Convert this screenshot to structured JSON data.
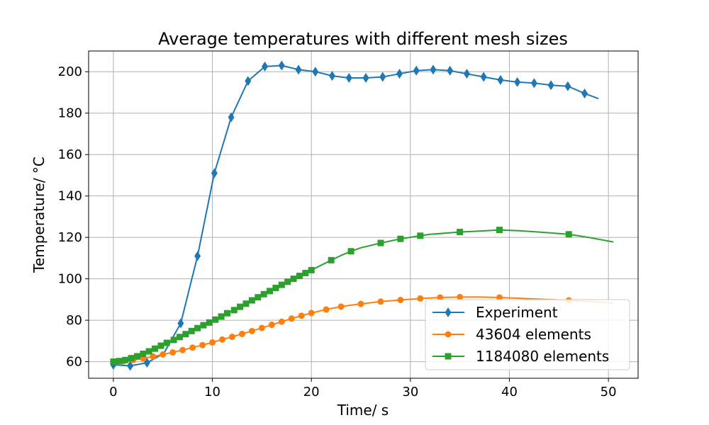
{
  "chart_data": {
    "type": "line",
    "title": "Average temperatures with different mesh sizes",
    "xlabel": "Time/ s",
    "ylabel": "Temperature/ °C",
    "xlim": [
      -2.5,
      53
    ],
    "ylim": [
      52,
      210
    ],
    "xticks": [
      0,
      10,
      20,
      30,
      40,
      50
    ],
    "yticks": [
      60,
      80,
      100,
      120,
      140,
      160,
      180,
      200
    ],
    "grid": true,
    "legend_position": "lower-right",
    "series": [
      {
        "name": "Experiment",
        "color": "#1f77b4",
        "marker": "diamond",
        "x": [
          0,
          1.7,
          3.4,
          5.1,
          6.8,
          8.5,
          10.2,
          11.9,
          13.6,
          15.3,
          17.0,
          18.7,
          20.4,
          22.1,
          23.8,
          25.5,
          27.2,
          28.9,
          30.6,
          32.3,
          34.0,
          35.7,
          37.4,
          39.1,
          40.8,
          42.5,
          44.2,
          45.9,
          47.6,
          49.0
        ],
        "y": [
          58.5,
          58.0,
          59.5,
          64.0,
          78.5,
          111.0,
          151.0,
          178.0,
          195.5,
          202.5,
          203.0,
          201.0,
          200.0,
          198.0,
          197.0,
          197.0,
          197.5,
          199.0,
          200.5,
          201.0,
          200.5,
          199.0,
          197.5,
          196.0,
          195.0,
          194.5,
          193.5,
          193.0,
          189.5,
          187.0
        ],
        "marker_indices": [
          0,
          1,
          2,
          4,
          5,
          6,
          7,
          8,
          9,
          10,
          11,
          12,
          13,
          14,
          15,
          16,
          17,
          18,
          19,
          20,
          21,
          22,
          23,
          24,
          25,
          26,
          27,
          28
        ]
      },
      {
        "name": "43604 elements",
        "color": "#ff7f0e",
        "marker": "circle",
        "x": [
          0,
          1,
          2,
          3,
          4,
          5,
          6,
          7,
          8,
          9,
          10,
          11,
          12,
          13,
          14,
          15,
          16,
          17,
          18,
          19,
          20,
          21.5,
          23,
          25,
          27,
          29,
          31,
          33,
          35,
          37,
          39,
          41,
          43,
          46,
          48,
          50.5
        ],
        "y": [
          60,
          60.2,
          60.8,
          61.6,
          62.5,
          63.5,
          64.5,
          65.6,
          66.8,
          68.0,
          69.3,
          70.7,
          72.0,
          73.4,
          74.8,
          76.3,
          77.8,
          79.3,
          80.8,
          82.2,
          83.5,
          85.2,
          86.6,
          87.9,
          89.0,
          89.8,
          90.5,
          91.0,
          91.2,
          91.2,
          91.0,
          90.6,
          90.2,
          89.6,
          89.0,
          88.3
        ],
        "marker_indices": [
          0,
          1,
          2,
          3,
          4,
          5,
          6,
          7,
          8,
          9,
          10,
          11,
          12,
          13,
          14,
          15,
          16,
          17,
          18,
          19,
          20,
          21,
          22,
          23,
          24,
          25,
          26,
          27,
          28,
          30,
          33
        ]
      },
      {
        "name": "1184080 elements",
        "color": "#2ca02c",
        "marker": "square",
        "x": [
          0,
          0.6,
          1.2,
          1.8,
          2.4,
          3.0,
          3.6,
          4.2,
          4.8,
          5.4,
          6.1,
          6.7,
          7.3,
          7.9,
          8.5,
          9.1,
          9.7,
          10.3,
          10.9,
          11.5,
          12.2,
          12.8,
          13.4,
          14.0,
          14.6,
          15.2,
          15.8,
          16.4,
          17.0,
          17.6,
          18.2,
          18.8,
          19.4,
          20.0,
          21.0,
          22.0,
          23.0,
          24.0,
          25.0,
          27.0,
          29.0,
          31.0,
          32.0,
          35.0,
          38.0,
          39.0,
          41.0,
          43.0,
          46.0,
          48.0,
          50.5
        ],
        "y": [
          60.0,
          60.3,
          60.8,
          61.7,
          62.6,
          63.8,
          65.0,
          66.3,
          67.7,
          69.1,
          70.5,
          71.9,
          73.3,
          74.8,
          76.2,
          77.6,
          78.9,
          80.3,
          81.8,
          83.4,
          84.9,
          86.5,
          88.0,
          89.6,
          91.1,
          92.6,
          94.1,
          95.6,
          97.1,
          98.6,
          100.0,
          101.4,
          102.8,
          104.2,
          106.6,
          109.0,
          111.3,
          113.3,
          115.0,
          117.3,
          119.3,
          120.8,
          121.5,
          122.6,
          123.3,
          123.6,
          123.2,
          122.6,
          121.5,
          120.0,
          117.8
        ],
        "marker_indices": [
          0,
          1,
          2,
          3,
          4,
          5,
          6,
          7,
          8,
          9,
          10,
          11,
          12,
          13,
          14,
          15,
          16,
          17,
          18,
          19,
          20,
          21,
          22,
          23,
          24,
          25,
          26,
          27,
          28,
          29,
          30,
          31,
          32,
          33,
          35,
          37,
          39,
          40,
          41,
          43,
          45,
          48
        ]
      }
    ]
  }
}
